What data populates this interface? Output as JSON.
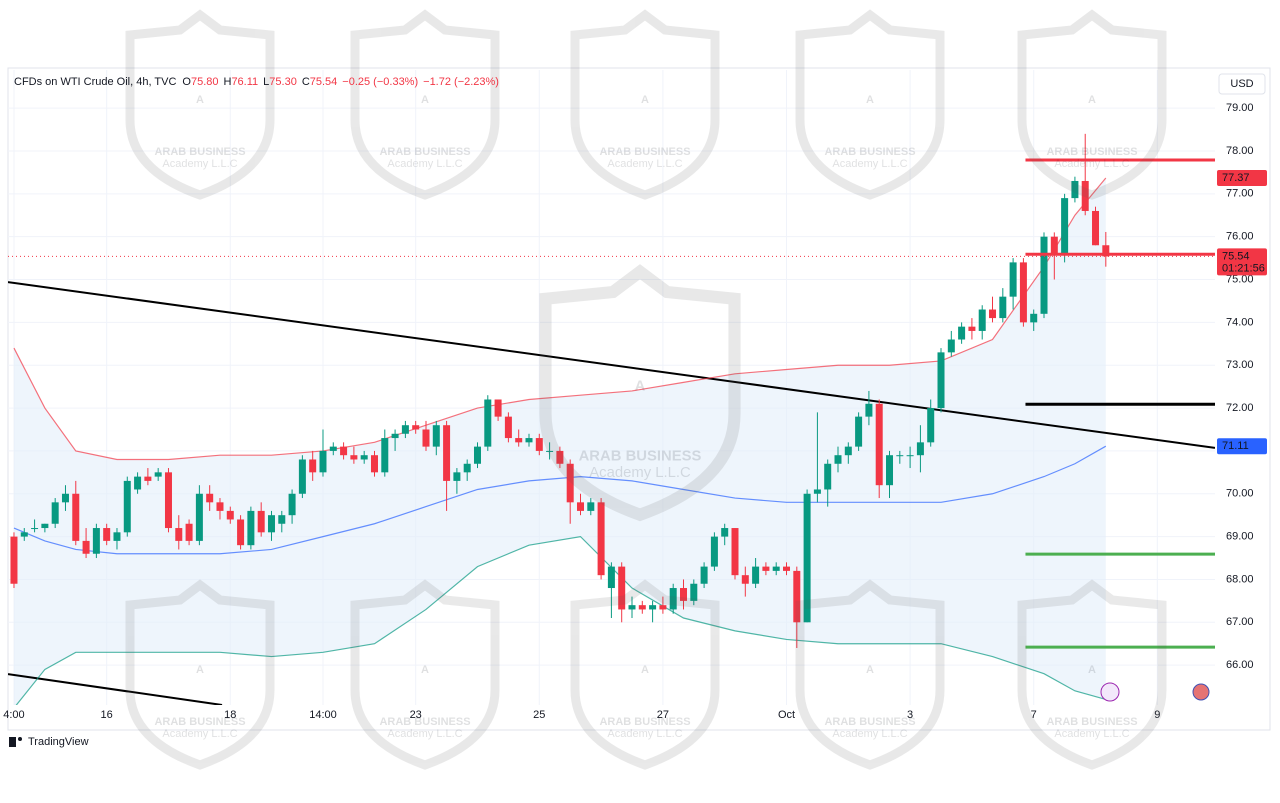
{
  "chart_data": {
    "type": "candlestick",
    "legend_title": "CFDs on WTI Crude Oil, 4h, TVC",
    "ohlc_legend": [
      {
        "label": "O",
        "value": "75.80"
      },
      {
        "label": "H",
        "value": "76.11"
      },
      {
        "label": "L",
        "value": "75.30"
      },
      {
        "label": "C",
        "value": "75.54"
      }
    ],
    "changes": [
      "−0.25 (−0.33%)",
      "−1.72 (−2.23%)"
    ],
    "currency": "USD",
    "countdown": "01:21:56",
    "brand": "TradingView",
    "watermark": {
      "text": "ARAB BUSINESS",
      "sub": "Academy L.L.C"
    },
    "up_color": "#089981",
    "down_color": "#f23645",
    "grid": true,
    "xlim": [
      -0.58,
      116.6
    ],
    "ylim": [
      65.07,
      79.89
    ],
    "yticks": [
      {
        "value": 66,
        "label": "66.00"
      },
      {
        "value": 67,
        "label": "67.00"
      },
      {
        "value": 68,
        "label": "68.00"
      },
      {
        "value": 69,
        "label": "69.00"
      },
      {
        "value": 70,
        "label": "70.00"
      },
      {
        "value": 71,
        "label": "71.00"
      },
      {
        "value": 72,
        "label": "72.00"
      },
      {
        "value": 73,
        "label": "73.00"
      },
      {
        "value": 74,
        "label": "74.00"
      },
      {
        "value": 75,
        "label": "75.00"
      },
      {
        "value": 76,
        "label": "76.00"
      },
      {
        "value": 77,
        "label": "77.00"
      },
      {
        "value": 78,
        "label": "78.00"
      },
      {
        "value": 79,
        "label": "79.00"
      }
    ],
    "categories": [
      "4:00",
      null,
      null,
      null,
      null,
      null,
      null,
      null,
      null,
      "16",
      null,
      null,
      null,
      null,
      null,
      null,
      null,
      null,
      null,
      null,
      null,
      "18",
      null,
      null,
      null,
      null,
      null,
      null,
      null,
      null,
      "14:00",
      null,
      null,
      null,
      null,
      null,
      null,
      null,
      null,
      "23",
      null,
      null,
      null,
      null,
      null,
      null,
      null,
      null,
      null,
      null,
      null,
      "25",
      null,
      null,
      null,
      null,
      null,
      null,
      null,
      null,
      null,
      null,
      null,
      "27",
      null,
      null,
      null,
      null,
      null,
      null,
      null,
      null,
      null,
      null,
      null,
      "Oct",
      null,
      null,
      null,
      null,
      null,
      null,
      null,
      null,
      null,
      null,
      null,
      "3",
      null,
      null,
      null,
      null,
      null,
      null,
      null,
      null,
      null,
      null,
      null,
      "7",
      null,
      null,
      null,
      null,
      null,
      null,
      null,
      null,
      null,
      null,
      null,
      "9",
      null,
      null,
      null,
      null
    ],
    "candles": [
      [
        69.0,
        69.1,
        67.8,
        67.9
      ],
      [
        69.0,
        69.2,
        68.9,
        69.1
      ],
      [
        69.2,
        69.4,
        69.1,
        69.2
      ],
      [
        69.2,
        69.3,
        69.1,
        69.3
      ],
      [
        69.3,
        69.9,
        69.2,
        69.8
      ],
      [
        69.8,
        70.2,
        69.6,
        70.0
      ],
      [
        70.0,
        70.3,
        68.8,
        68.9
      ],
      [
        68.9,
        69.2,
        68.5,
        68.6
      ],
      [
        68.6,
        69.3,
        68.5,
        69.2
      ],
      [
        69.2,
        69.3,
        68.8,
        68.9
      ],
      [
        68.9,
        69.2,
        68.7,
        69.1
      ],
      [
        69.1,
        70.4,
        69.0,
        70.3
      ],
      [
        70.1,
        70.5,
        70.0,
        70.4
      ],
      [
        70.4,
        70.6,
        70.2,
        70.3
      ],
      [
        70.4,
        70.6,
        70.3,
        70.5
      ],
      [
        70.5,
        70.6,
        69.1,
        69.2
      ],
      [
        69.2,
        69.5,
        68.7,
        68.9
      ],
      [
        69.3,
        69.4,
        68.8,
        68.9
      ],
      [
        68.9,
        70.2,
        68.8,
        70.0
      ],
      [
        70.0,
        70.2,
        69.6,
        69.8
      ],
      [
        69.8,
        69.9,
        69.4,
        69.6
      ],
      [
        69.6,
        69.7,
        69.3,
        69.4
      ],
      [
        69.4,
        69.5,
        68.7,
        68.8
      ],
      [
        68.8,
        69.7,
        68.7,
        69.6
      ],
      [
        69.6,
        69.8,
        69.0,
        69.1
      ],
      [
        69.1,
        69.6,
        68.9,
        69.5
      ],
      [
        69.3,
        69.6,
        69.1,
        69.5
      ],
      [
        69.5,
        70.1,
        69.3,
        70.0
      ],
      [
        70.0,
        70.9,
        69.9,
        70.8
      ],
      [
        70.8,
        71.0,
        70.3,
        70.5
      ],
      [
        70.5,
        71.5,
        70.4,
        71.0
      ],
      [
        71.0,
        71.2,
        70.9,
        71.1
      ],
      [
        71.1,
        71.2,
        70.8,
        70.9
      ],
      [
        70.9,
        71.1,
        70.7,
        70.8
      ],
      [
        70.8,
        71.0,
        70.7,
        70.9
      ],
      [
        70.9,
        71.0,
        70.4,
        70.5
      ],
      [
        70.5,
        71.5,
        70.4,
        71.3
      ],
      [
        71.3,
        71.5,
        71.0,
        71.4
      ],
      [
        71.4,
        71.7,
        71.3,
        71.6
      ],
      [
        71.6,
        71.7,
        71.4,
        71.5
      ],
      [
        71.5,
        71.7,
        71.0,
        71.1
      ],
      [
        71.1,
        71.7,
        70.9,
        71.6
      ],
      [
        71.6,
        71.7,
        69.6,
        70.3
      ],
      [
        70.3,
        70.6,
        70.0,
        70.5
      ],
      [
        70.5,
        70.8,
        70.3,
        70.7
      ],
      [
        70.7,
        71.2,
        70.6,
        71.1
      ],
      [
        71.1,
        72.3,
        71.0,
        72.2
      ],
      [
        72.2,
        72.2,
        71.7,
        71.8
      ],
      [
        71.8,
        71.9,
        71.2,
        71.3
      ],
      [
        71.3,
        71.5,
        71.1,
        71.2
      ],
      [
        71.2,
        71.4,
        71.1,
        71.3
      ],
      [
        71.3,
        71.4,
        70.9,
        71.0
      ],
      [
        71.0,
        71.2,
        70.8,
        71.0
      ],
      [
        71.0,
        71.1,
        70.6,
        70.7
      ],
      [
        70.7,
        70.8,
        69.3,
        69.8
      ],
      [
        69.8,
        70.0,
        69.5,
        69.6
      ],
      [
        69.6,
        69.9,
        69.5,
        69.8
      ],
      [
        69.8,
        69.9,
        68.0,
        68.1
      ],
      [
        67.8,
        68.4,
        67.1,
        68.3
      ],
      [
        68.3,
        68.4,
        67.0,
        67.3
      ],
      [
        67.3,
        67.6,
        67.1,
        67.4
      ],
      [
        67.4,
        67.5,
        67.2,
        67.3
      ],
      [
        67.3,
        67.5,
        67.0,
        67.4
      ],
      [
        67.4,
        67.6,
        67.2,
        67.3
      ],
      [
        67.3,
        67.9,
        67.2,
        67.8
      ],
      [
        67.8,
        68.0,
        67.3,
        67.5
      ],
      [
        67.5,
        68.0,
        67.4,
        67.9
      ],
      [
        67.9,
        68.4,
        67.8,
        68.3
      ],
      [
        68.3,
        69.1,
        68.2,
        69.0
      ],
      [
        69.0,
        69.3,
        68.8,
        69.2
      ],
      [
        69.2,
        69.2,
        68.0,
        68.1
      ],
      [
        68.1,
        68.3,
        67.6,
        67.9
      ],
      [
        67.9,
        68.5,
        67.8,
        68.3
      ],
      [
        68.3,
        68.4,
        68.1,
        68.2
      ],
      [
        68.2,
        68.4,
        68.1,
        68.3
      ],
      [
        68.3,
        68.4,
        68.1,
        68.2
      ],
      [
        68.2,
        68.3,
        66.4,
        67.0
      ],
      [
        67.0,
        70.1,
        67.0,
        70.0
      ],
      [
        70.0,
        71.9,
        69.8,
        70.1
      ],
      [
        70.1,
        70.8,
        69.7,
        70.7
      ],
      [
        70.7,
        71.1,
        70.5,
        70.9
      ],
      [
        70.9,
        71.2,
        70.7,
        71.1
      ],
      [
        71.1,
        71.9,
        71.0,
        71.8
      ],
      [
        71.8,
        72.4,
        71.6,
        72.1
      ],
      [
        72.1,
        72.2,
        69.9,
        70.2
      ],
      [
        70.2,
        71.0,
        69.9,
        70.9
      ],
      [
        70.9,
        71.0,
        70.7,
        70.9
      ],
      [
        70.9,
        71.1,
        70.6,
        70.9
      ],
      [
        70.9,
        71.6,
        70.5,
        71.2
      ],
      [
        71.2,
        72.2,
        71.1,
        72.0
      ],
      [
        72.0,
        73.4,
        71.9,
        73.3
      ],
      [
        73.3,
        73.8,
        73.2,
        73.6
      ],
      [
        73.6,
        74.0,
        73.5,
        73.9
      ],
      [
        73.9,
        74.1,
        73.6,
        73.8
      ],
      [
        73.8,
        74.4,
        73.6,
        74.3
      ],
      [
        74.3,
        74.6,
        74.0,
        74.1
      ],
      [
        74.1,
        74.8,
        74.0,
        74.6
      ],
      [
        74.6,
        75.5,
        74.3,
        75.4
      ],
      [
        75.4,
        75.5,
        73.9,
        74.0
      ],
      [
        74.0,
        74.3,
        73.8,
        74.2
      ],
      [
        74.2,
        76.1,
        74.1,
        76.0
      ],
      [
        76.0,
        76.1,
        75.0,
        75.6
      ],
      [
        75.6,
        77.0,
        75.4,
        76.9
      ],
      [
        76.9,
        77.4,
        76.8,
        77.3
      ],
      [
        77.3,
        78.4,
        76.5,
        76.6
      ],
      [
        76.6,
        76.7,
        75.8,
        75.8
      ],
      [
        75.8,
        76.11,
        75.3,
        75.54
      ],
      null,
      null,
      null,
      null,
      null,
      null,
      null,
      null,
      null
    ],
    "bands": {
      "x": [
        0,
        3,
        6,
        10,
        15,
        20,
        25,
        30,
        35,
        40,
        45,
        50,
        55,
        60,
        65,
        70,
        75,
        80,
        85,
        90,
        95,
        100,
        103,
        106
      ],
      "fill": "#e3eefa",
      "lines": [
        {
          "color": "#f23645",
          "tag": true,
          "values": [
            73.4,
            72.0,
            71.0,
            70.8,
            70.8,
            70.9,
            70.9,
            71.0,
            71.2,
            71.6,
            72.0,
            72.2,
            72.3,
            72.4,
            72.6,
            72.8,
            72.9,
            73.0,
            73.0,
            73.1,
            73.6,
            75.3,
            76.5,
            77.37
          ]
        },
        {
          "color": "#2962ff",
          "tag": true,
          "values": [
            69.2,
            68.9,
            68.7,
            68.6,
            68.6,
            68.6,
            68.7,
            69.0,
            69.3,
            69.7,
            70.1,
            70.3,
            70.4,
            70.3,
            70.1,
            69.9,
            69.8,
            69.8,
            69.8,
            69.8,
            70.0,
            70.4,
            70.7,
            71.11
          ]
        },
        {
          "color": "#089981",
          "tag": false,
          "values": [
            65.0,
            65.9,
            66.3,
            66.3,
            66.3,
            66.3,
            66.2,
            66.3,
            66.5,
            67.3,
            68.3,
            68.8,
            69.0,
            67.8,
            67.1,
            66.8,
            66.6,
            66.5,
            66.5,
            66.5,
            66.2,
            65.8,
            65.4,
            65.2
          ]
        }
      ]
    },
    "trendlines": [
      {
        "color": "#000000",
        "x": [
          -0.58,
          116.6
        ],
        "values": [
          74.94,
          71.07
        ]
      },
      {
        "color": "#000000",
        "x": [
          -0.58,
          20.2
        ],
        "values": [
          65.79,
          65.07
        ]
      }
    ],
    "levels_from": 98.2,
    "levels": [
      {
        "value": 77.79,
        "color": "#f23645"
      },
      {
        "value": 75.59,
        "color": "#f23645"
      },
      {
        "value": 72.09,
        "color": "#000000"
      },
      {
        "value": 68.59,
        "color": "#4caf50"
      },
      {
        "value": 66.42,
        "color": "#4caf50"
      }
    ]
  }
}
